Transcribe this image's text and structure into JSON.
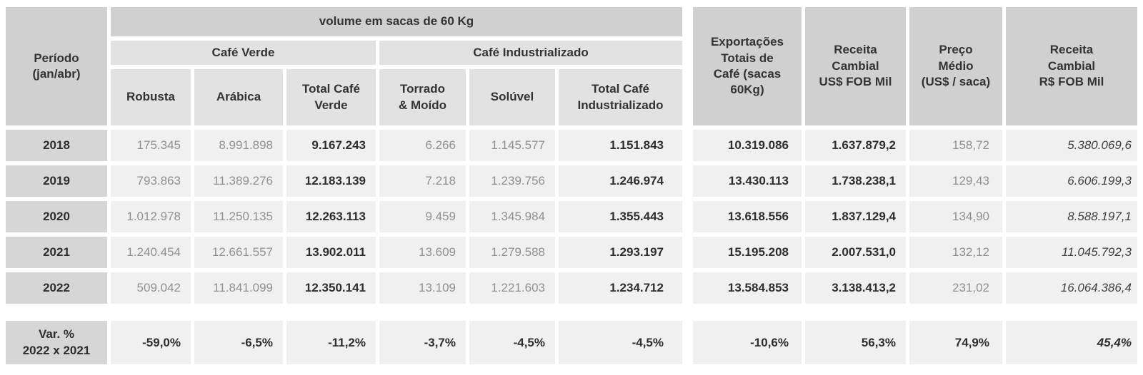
{
  "colors": {
    "header_dark_bg": "#d0d0d0",
    "header_light_bg": "#e2e2e2",
    "row_label_bg": "#d6d6d6",
    "cell_bg": "#f0f0f0",
    "text_dark": "#2e2e2e",
    "text_gray": "#909090"
  },
  "chart_data": {
    "type": "table",
    "header": {
      "periodo": "Período\n(jan/abr)",
      "volume_group": "volume em sacas de 60 Kg",
      "verde_group": "Café Verde",
      "indus_group": "Café Industrializado",
      "robusta": "Robusta",
      "arabica": "Arábica",
      "total_verde": "Total Café\nVerde",
      "torrado": "Torrado\n& Moído",
      "soluvel": "Solúvel",
      "total_indus": "Total Café\nIndustrializado",
      "export_total": "Exportações\nTotais de\nCafé (sacas\n60Kg)",
      "receita_usd": "Receita\nCambial\nUS$ FOB Mil",
      "preco_medio": "Preço\nMédio\n(US$ / saca)",
      "receita_brl": "Receita\nCambial\nR$ FOB Mil"
    },
    "rows": [
      {
        "period": "2018",
        "robusta": "175.345",
        "arabica": "8.991.898",
        "total_verde": "9.167.243",
        "torrado": "6.266",
        "soluvel": "1.145.577",
        "total_indus": "1.151.843",
        "export_total": "10.319.086",
        "receita_usd": "1.637.879,2",
        "preco_medio": "158,72",
        "receita_brl": "5.380.069,6"
      },
      {
        "period": "2019",
        "robusta": "793.863",
        "arabica": "11.389.276",
        "total_verde": "12.183.139",
        "torrado": "7.218",
        "soluvel": "1.239.756",
        "total_indus": "1.246.974",
        "export_total": "13.430.113",
        "receita_usd": "1.738.238,1",
        "preco_medio": "129,43",
        "receita_brl": "6.606.199,3"
      },
      {
        "period": "2020",
        "robusta": "1.012.978",
        "arabica": "11.250.135",
        "total_verde": "12.263.113",
        "torrado": "9.459",
        "soluvel": "1.345.984",
        "total_indus": "1.355.443",
        "export_total": "13.618.556",
        "receita_usd": "1.837.129,4",
        "preco_medio": "134,90",
        "receita_brl": "8.588.197,1"
      },
      {
        "period": "2021",
        "robusta": "1.240.454",
        "arabica": "12.661.557",
        "total_verde": "13.902.011",
        "torrado": "13.609",
        "soluvel": "1.279.588",
        "total_indus": "1.293.197",
        "export_total": "15.195.208",
        "receita_usd": "2.007.531,0",
        "preco_medio": "132,12",
        "receita_brl": "11.045.792,3"
      },
      {
        "period": "2022",
        "robusta": "509.042",
        "arabica": "11.841.099",
        "total_verde": "12.350.141",
        "torrado": "13.109",
        "soluvel": "1.221.603",
        "total_indus": "1.234.712",
        "export_total": "13.584.853",
        "receita_usd": "3.138.413,2",
        "preco_medio": "231,02",
        "receita_brl": "16.064.386,4"
      }
    ],
    "variation_row": {
      "period": "Var. %\n2022 x 2021",
      "robusta": "-59,0%",
      "arabica": "-6,5%",
      "total_verde": "-11,2%",
      "torrado": "-3,7%",
      "soluvel": "-4,5%",
      "total_indus": "-4,5%",
      "export_total": "-10,6%",
      "receita_usd": "56,3%",
      "preco_medio": "74,9%",
      "receita_brl": "45,4%"
    }
  }
}
